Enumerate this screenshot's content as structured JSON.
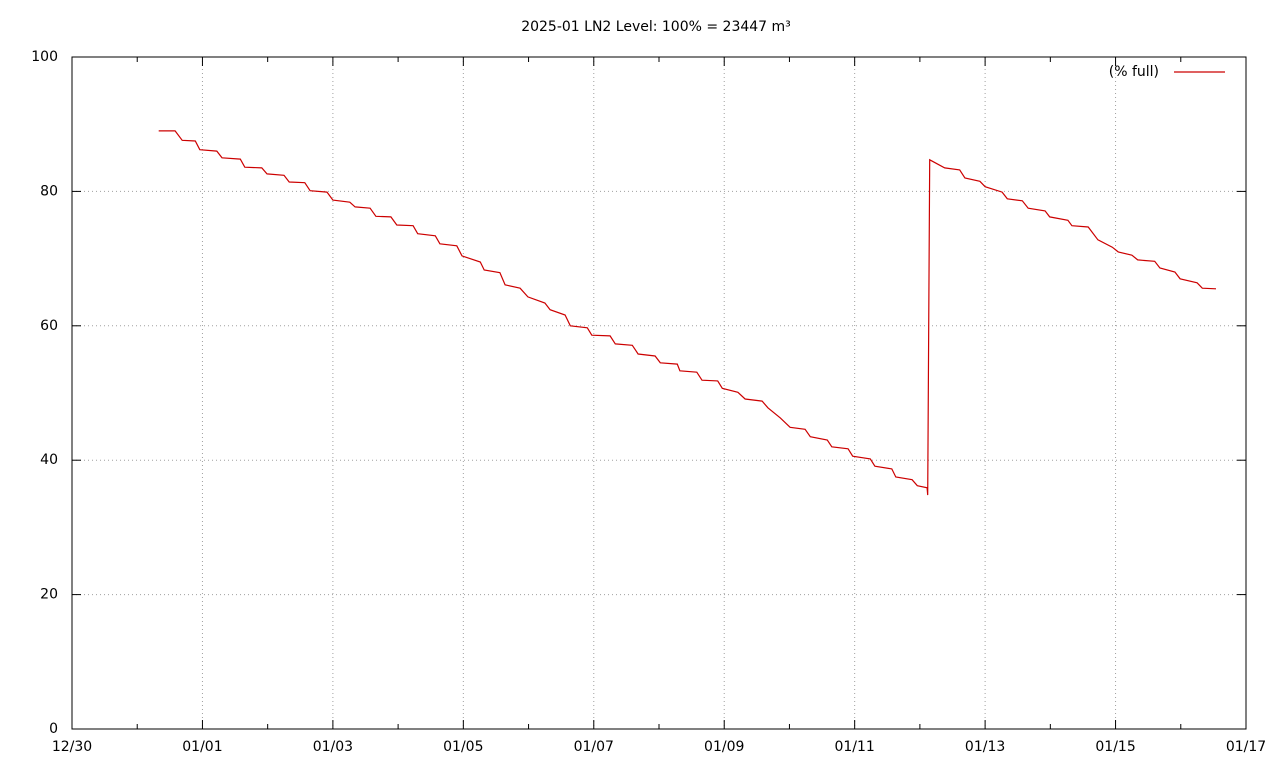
{
  "chart_data": {
    "type": "line",
    "title": "2025-01 LN2 Level: 100% = 23447 m³",
    "x": [
      1.33,
      1.58,
      1.69,
      1.89,
      1.96,
      2.22,
      2.3,
      2.58,
      2.65,
      2.91,
      2.99,
      3.25,
      3.33,
      3.57,
      3.65,
      3.91,
      4.0,
      4.26,
      4.34,
      4.57,
      4.66,
      4.89,
      4.98,
      5.23,
      5.3,
      5.57,
      5.64,
      5.9,
      5.98,
      6.26,
      6.32,
      6.56,
      6.64,
      6.87,
      6.99,
      7.25,
      7.33,
      7.56,
      7.64,
      7.9,
      7.97,
      8.25,
      8.33,
      8.59,
      8.68,
      8.94,
      9.02,
      9.28,
      9.32,
      9.58,
      9.66,
      9.9,
      9.97,
      10.21,
      10.32,
      10.58,
      10.67,
      10.86,
      11.01,
      11.24,
      11.32,
      11.58,
      11.65,
      11.9,
      11.97,
      12.24,
      12.31,
      12.57,
      12.63,
      12.88,
      12.96,
      13.11,
      13.12,
      13.15,
      13.38,
      13.61,
      13.69,
      13.92,
      14.0,
      14.26,
      14.34,
      14.57,
      14.66,
      14.92,
      14.99,
      15.27,
      15.33,
      15.58,
      15.73,
      15.95,
      16.04,
      16.25,
      16.34,
      16.6,
      16.68,
      16.91,
      16.99,
      17.25,
      17.33,
      17.54
    ],
    "series": [
      {
        "name": "(% full)",
        "color": "#cc0000",
        "values": [
          89.0,
          89.0,
          87.6,
          87.5,
          86.2,
          86.0,
          85.0,
          84.8,
          83.6,
          83.5,
          82.6,
          82.4,
          81.4,
          81.3,
          80.1,
          79.9,
          78.7,
          78.4,
          77.7,
          77.5,
          76.3,
          76.2,
          75.0,
          74.9,
          73.7,
          73.4,
          72.2,
          71.9,
          70.4,
          69.5,
          68.3,
          67.9,
          66.1,
          65.6,
          64.3,
          63.4,
          62.4,
          61.6,
          60.0,
          59.7,
          58.6,
          58.5,
          57.3,
          57.1,
          55.8,
          55.5,
          54.5,
          54.3,
          53.3,
          53.1,
          51.9,
          51.8,
          50.7,
          50.1,
          49.1,
          48.8,
          47.8,
          46.3,
          44.9,
          44.6,
          43.5,
          43.0,
          42.0,
          41.7,
          40.6,
          40.2,
          39.1,
          38.7,
          37.5,
          37.1,
          36.2,
          35.9,
          34.8,
          84.7,
          83.5,
          83.2,
          82.0,
          81.5,
          80.7,
          79.9,
          78.9,
          78.6,
          77.5,
          77.1,
          76.2,
          75.7,
          74.9,
          74.7,
          72.8,
          71.7,
          71.0,
          70.5,
          69.8,
          69.6,
          68.6,
          68.0,
          67.0,
          66.4,
          65.6,
          65.5
        ]
      }
    ],
    "xlim": [
      0,
      18
    ],
    "xticks": [
      {
        "value": 0,
        "label": "12/30"
      },
      {
        "value": 2,
        "label": "01/01"
      },
      {
        "value": 4,
        "label": "01/03"
      },
      {
        "value": 6,
        "label": "01/05"
      },
      {
        "value": 8,
        "label": "01/07"
      },
      {
        "value": 10,
        "label": "01/09"
      },
      {
        "value": 12,
        "label": "01/11"
      },
      {
        "value": 14,
        "label": "01/13"
      },
      {
        "value": 16,
        "label": "01/15"
      },
      {
        "value": 18,
        "label": "01/17"
      }
    ],
    "ylim": [
      0,
      100
    ],
    "yticks": [
      0,
      20,
      40,
      60,
      80,
      100
    ],
    "grid": true,
    "legend": "top-right"
  }
}
